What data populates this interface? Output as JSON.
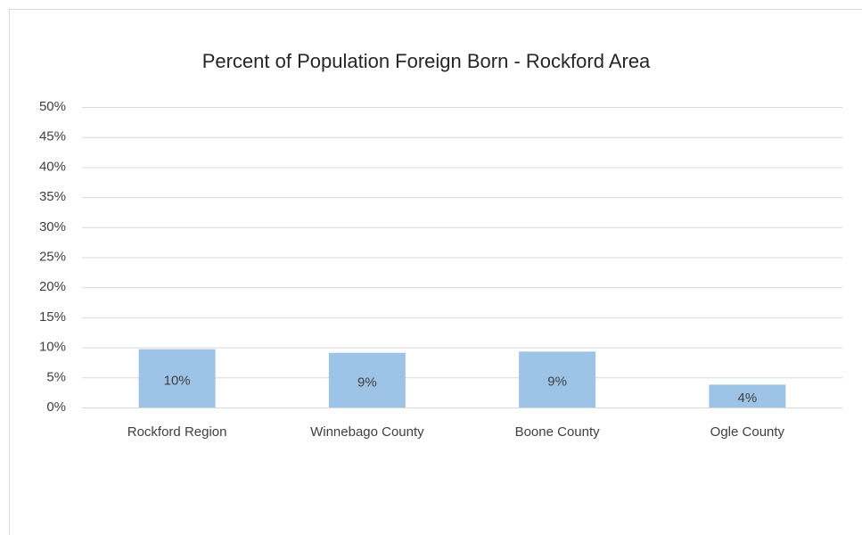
{
  "chart_data": {
    "type": "bar",
    "title": "Percent of Population Foreign Born - Rockford Area",
    "categories": [
      "Rockford Region",
      "Winnebago County",
      "Boone County",
      "Ogle County"
    ],
    "values": [
      9.7,
      9.1,
      9.3,
      3.8
    ],
    "value_labels": [
      "10%",
      "9%",
      "9%",
      "4%"
    ],
    "color": "#9dc3e6",
    "ylim": [
      0,
      50
    ],
    "yticks": [
      {
        "value": 0,
        "label": "0%"
      },
      {
        "value": 5,
        "label": "5%"
      },
      {
        "value": 10,
        "label": "10%"
      },
      {
        "value": 15,
        "label": "15%"
      },
      {
        "value": 20,
        "label": "20%"
      },
      {
        "value": 25,
        "label": "25%"
      },
      {
        "value": 30,
        "label": "30%"
      },
      {
        "value": 35,
        "label": "35%"
      },
      {
        "value": 40,
        "label": "40%"
      },
      {
        "value": 45,
        "label": "45%"
      },
      {
        "value": 50,
        "label": "50%"
      }
    ],
    "grid": true
  }
}
